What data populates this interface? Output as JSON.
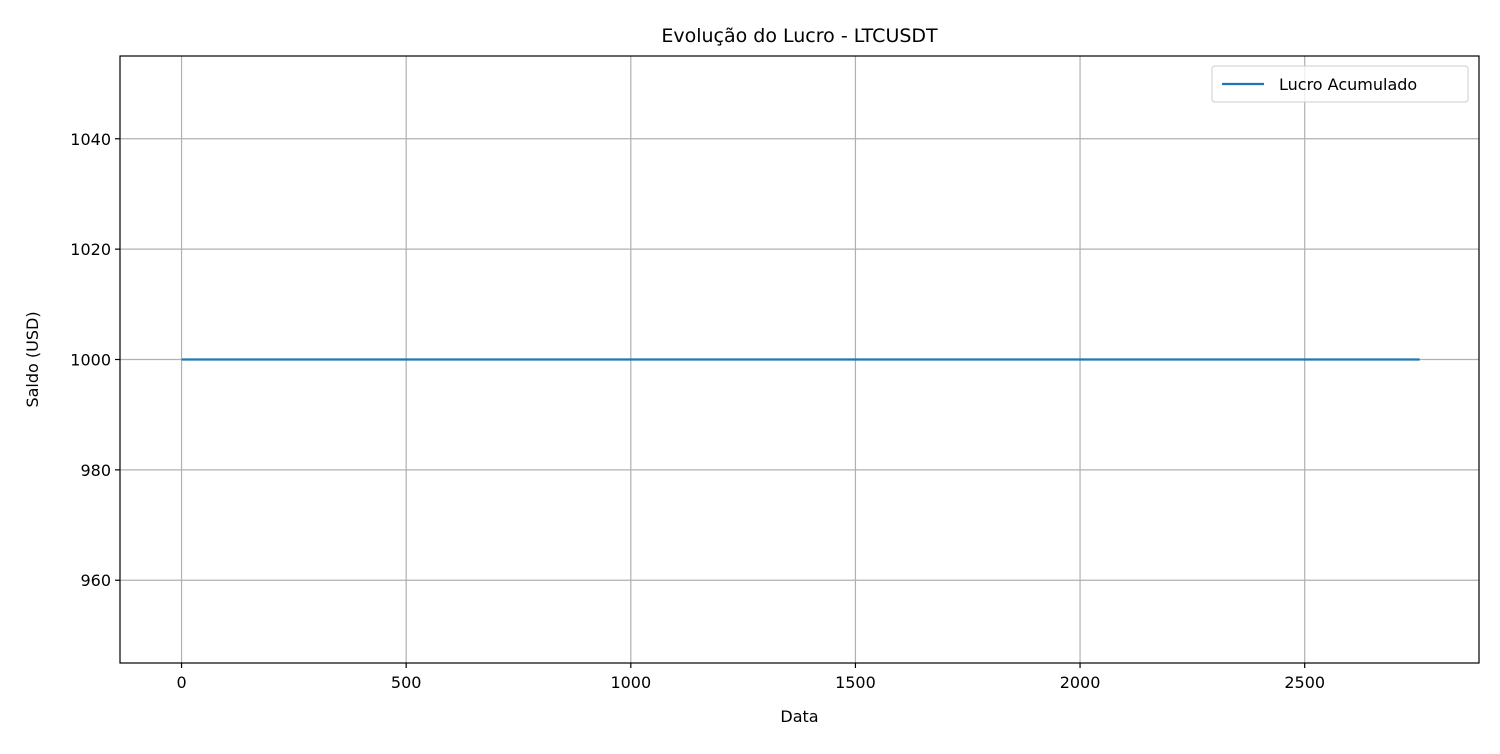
{
  "chart_data": {
    "type": "line",
    "title": "Evolução do Lucro - LTCUSDT",
    "xlabel": "Data",
    "ylabel": "Saldo (USD)",
    "xlim": [
      -137,
      2888
    ],
    "ylim": [
      945,
      1055
    ],
    "xticks": [
      0,
      500,
      1000,
      1500,
      2000,
      2500
    ],
    "yticks": [
      960,
      980,
      1000,
      1020,
      1040
    ],
    "grid": true,
    "legend_position": "top-right",
    "series": [
      {
        "name": "Lucro Acumulado",
        "color": "#1f77b4",
        "x": [
          0,
          2756
        ],
        "y": [
          1000,
          1000
        ]
      }
    ]
  }
}
